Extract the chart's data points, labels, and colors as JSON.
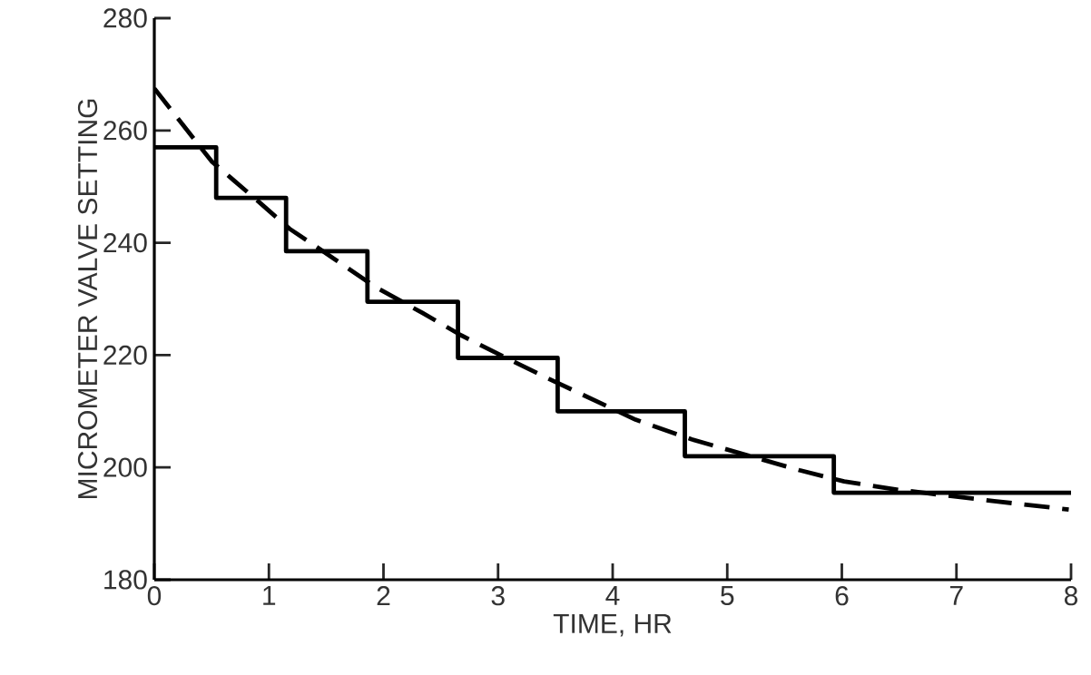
{
  "chart_data": {
    "type": "step",
    "xlabel": "TIME, HR",
    "ylabel": "MICROMETER VALVE SETTING",
    "xlim": [
      0,
      8
    ],
    "ylim": [
      180,
      280
    ],
    "xticks": [
      0,
      1,
      2,
      3,
      4,
      5,
      6,
      7,
      8
    ],
    "yticks": [
      180,
      200,
      220,
      240,
      260,
      280
    ],
    "grid": false,
    "marker": "none",
    "series": [
      {
        "type": "step",
        "color": "#000000",
        "line_style": "solid",
        "x": [
          0,
          0.54,
          1.15,
          1.86,
          2.65,
          3.52,
          4.63,
          5.93,
          8
        ],
        "values": [
          257,
          248,
          238.5,
          229.5,
          219.5,
          210,
          202,
          195.5,
          195.5
        ]
      },
      {
        "type": "line",
        "color": "#000000",
        "line_style": "dashed",
        "x": [
          0,
          0.5,
          0.9,
          1.18,
          1.58,
          1.94,
          2.34,
          2.68,
          3.07,
          3.42,
          4.2,
          4.69,
          5.63,
          6.02,
          6.5,
          7.33,
          7.98
        ],
        "values": [
          267.5,
          254.5,
          247.5,
          242.5,
          237,
          232,
          227.5,
          223.5,
          219.5,
          216,
          208.5,
          205,
          199.5,
          197.5,
          196,
          194,
          192.5
        ]
      }
    ]
  }
}
